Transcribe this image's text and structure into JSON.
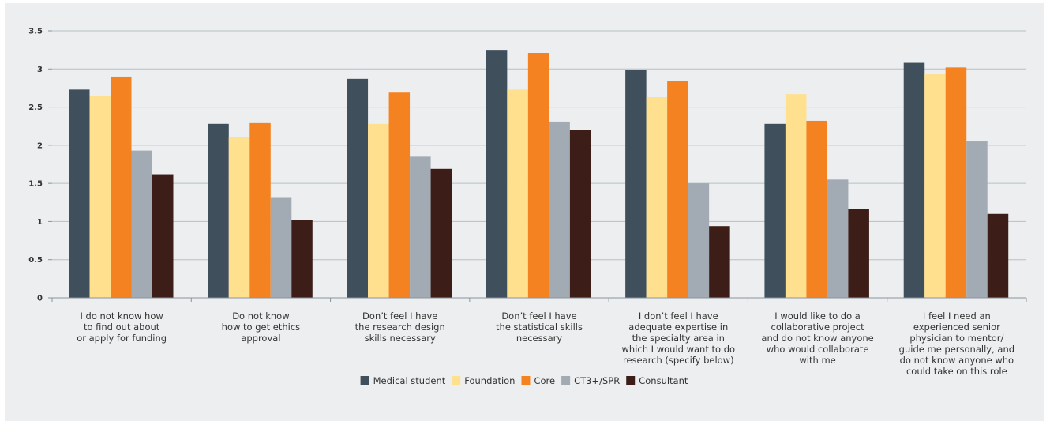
{
  "chart_data": {
    "type": "bar",
    "title": "",
    "xlabel": "",
    "ylabel": "",
    "ylim": [
      0,
      3.5
    ],
    "yticks": [
      0,
      0.5,
      1,
      1.5,
      2,
      2.5,
      3,
      3.5
    ],
    "ytick_labels": [
      "0",
      "0.5",
      "1",
      "1.5",
      "2",
      "2.5",
      "3",
      "3.5"
    ],
    "grid": "horizontal",
    "legend_position": "bottom-center",
    "categories": [
      [
        "I do not  know how",
        "to find out about",
        "or apply for funding"
      ],
      [
        "Do not know",
        "how to get ethics",
        "approval"
      ],
      [
        "Don’t feel I have",
        "the research design",
        "skills necessary"
      ],
      [
        "Don’t feel I have",
        "the statistical skills",
        "necessary"
      ],
      [
        "I don’t feel I have",
        "adequate expertise in",
        "the specialty area in",
        "which I would want to do",
        "research (specify below)"
      ],
      [
        "I would like to do a",
        "collaborative project",
        "and do not know anyone",
        "who would collaborate",
        "with me"
      ],
      [
        "I feel I need an",
        "experienced senior",
        "physician to mentor/",
        "guide me personally, and",
        "do not know anyone who",
        "could take on this role"
      ]
    ],
    "series": [
      {
        "name": "Medical student",
        "color": "#3f4f5c",
        "values": [
          2.73,
          2.28,
          2.87,
          3.25,
          2.99,
          2.28,
          3.08
        ]
      },
      {
        "name": "Foundation",
        "color": "#ffe08f",
        "values": [
          2.65,
          2.11,
          2.28,
          2.73,
          2.63,
          2.67,
          2.93
        ]
      },
      {
        "name": "Core",
        "color": "#f58220",
        "values": [
          2.9,
          2.29,
          2.69,
          3.21,
          2.84,
          2.32,
          3.02
        ]
      },
      {
        "name": "CT3+/SPR",
        "color": "#a2abb3",
        "values": [
          1.93,
          1.31,
          1.85,
          2.31,
          1.5,
          1.55,
          2.05
        ]
      },
      {
        "name": "Consultant",
        "color": "#3c1d17",
        "values": [
          1.62,
          1.02,
          1.69,
          2.2,
          0.94,
          1.16,
          1.1
        ]
      }
    ]
  }
}
